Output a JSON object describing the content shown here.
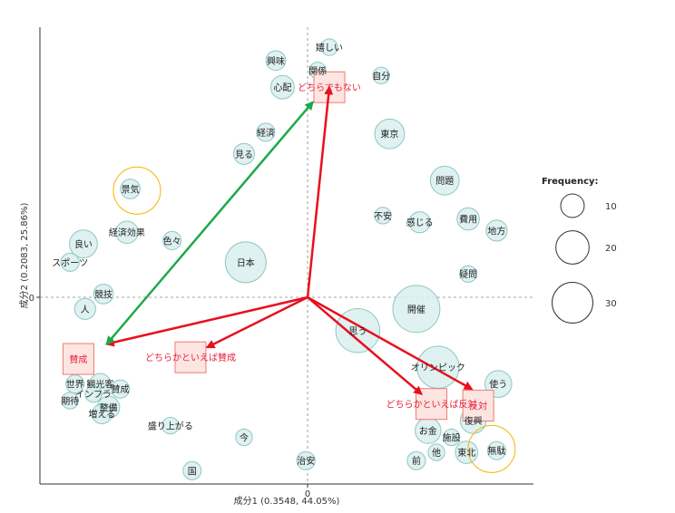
{
  "chart_data": {
    "type": "scatter",
    "xlabel": "成分1 (0.3548, 44.05%)",
    "ylabel": "成分2 (0.2083, 25.86%)",
    "xlim": [
      -1.6,
      1.35
    ],
    "ylim": [
      -1.12,
      1.62
    ],
    "reference_lines": {
      "x": 0,
      "y": 0
    },
    "x_ticks": [
      {
        "value": 0,
        "label": "0"
      }
    ],
    "y_ticks": [
      {
        "value": 0,
        "label": "0"
      }
    ],
    "words": [
      {
        "label": "嬉しい",
        "x": 0.13,
        "y": 1.5,
        "freq": 5
      },
      {
        "label": "興味",
        "x": -0.19,
        "y": 1.42,
        "freq": 7
      },
      {
        "label": "関係",
        "x": 0.06,
        "y": 1.36,
        "freq": 5
      },
      {
        "label": "自分",
        "x": 0.44,
        "y": 1.33,
        "freq": 5
      },
      {
        "label": "心配",
        "x": -0.15,
        "y": 1.26,
        "freq": 10
      },
      {
        "label": "経済",
        "x": -0.25,
        "y": 0.99,
        "freq": 6
      },
      {
        "label": "東京",
        "x": 0.49,
        "y": 0.98,
        "freq": 16
      },
      {
        "label": "見る",
        "x": -0.38,
        "y": 0.86,
        "freq": 8
      },
      {
        "label": "問題",
        "x": 0.82,
        "y": 0.7,
        "freq": 15
      },
      {
        "label": "景気",
        "x": -1.06,
        "y": 0.65,
        "freq": 7
      },
      {
        "label": "費用",
        "x": 0.96,
        "y": 0.47,
        "freq": 9
      },
      {
        "label": "不安",
        "x": 0.45,
        "y": 0.49,
        "freq": 5
      },
      {
        "label": "感じる",
        "x": 0.67,
        "y": 0.45,
        "freq": 8
      },
      {
        "label": "地方",
        "x": 1.13,
        "y": 0.4,
        "freq": 8
      },
      {
        "label": "良い",
        "x": -1.34,
        "y": 0.32,
        "freq": 14
      },
      {
        "label": "経済効果",
        "x": -1.08,
        "y": 0.39,
        "freq": 9
      },
      {
        "label": "色々",
        "x": -0.81,
        "y": 0.34,
        "freq": 6
      },
      {
        "label": "日本",
        "x": -0.37,
        "y": 0.21,
        "freq": 30
      },
      {
        "label": "スポーツ",
        "x": -1.42,
        "y": 0.21,
        "freq": 6
      },
      {
        "label": "疑問",
        "x": 0.96,
        "y": 0.14,
        "freq": 5
      },
      {
        "label": "競技",
        "x": -1.22,
        "y": 0.02,
        "freq": 7
      },
      {
        "label": "人",
        "x": -1.33,
        "y": -0.07,
        "freq": 8
      },
      {
        "label": "開催",
        "x": 0.65,
        "y": -0.07,
        "freq": 40
      },
      {
        "label": "思う",
        "x": 0.3,
        "y": -0.2,
        "freq": 35
      },
      {
        "label": "オリンピック",
        "x": 0.78,
        "y": -0.42,
        "freq": 32
      },
      {
        "label": "使う",
        "x": 1.14,
        "y": -0.52,
        "freq": 13
      },
      {
        "label": "世界",
        "x": -1.39,
        "y": -0.52,
        "freq": 6
      },
      {
        "label": "観光客",
        "x": -1.24,
        "y": -0.52,
        "freq": 8
      },
      {
        "label": "賛成",
        "x": -1.12,
        "y": -0.55,
        "freq": 6
      },
      {
        "label": "インフラ",
        "x": -1.28,
        "y": -0.58,
        "freq": 5
      },
      {
        "label": "期待",
        "x": -1.42,
        "y": -0.62,
        "freq": 5
      },
      {
        "label": "整備",
        "x": -1.19,
        "y": -0.66,
        "freq": 9
      },
      {
        "label": "増える",
        "x": -1.23,
        "y": -0.7,
        "freq": 7
      },
      {
        "label": "盛り上がる",
        "x": -0.82,
        "y": -0.77,
        "freq": 5
      },
      {
        "label": "復興",
        "x": 0.99,
        "y": -0.74,
        "freq": 12
      },
      {
        "label": "お金",
        "x": 0.72,
        "y": -0.8,
        "freq": 12
      },
      {
        "label": "施設",
        "x": 0.86,
        "y": -0.84,
        "freq": 5
      },
      {
        "label": "今",
        "x": -0.38,
        "y": -0.84,
        "freq": 5
      },
      {
        "label": "無駄",
        "x": 1.13,
        "y": -0.92,
        "freq": 6
      },
      {
        "label": "他",
        "x": 0.77,
        "y": -0.93,
        "freq": 5
      },
      {
        "label": "東北",
        "x": 0.95,
        "y": -0.93,
        "freq": 9
      },
      {
        "label": "前",
        "x": 0.65,
        "y": -0.98,
        "freq": 6
      },
      {
        "label": "治安",
        "x": -0.01,
        "y": -0.98,
        "freq": 6
      },
      {
        "label": "国",
        "x": -0.69,
        "y": -1.04,
        "freq": 6
      }
    ],
    "categories": [
      {
        "label": "どちらでもない",
        "x": 0.13,
        "y": 1.26
      },
      {
        "label": "賛成",
        "x": -1.37,
        "y": -0.37
      },
      {
        "label": "どちらかといえば賛成",
        "x": -0.7,
        "y": -0.36
      },
      {
        "label": "どちらかといえば反対",
        "x": 0.74,
        "y": -0.64
      },
      {
        "label": "反対",
        "x": 1.02,
        "y": -0.65
      }
    ],
    "arrows": [
      {
        "from": [
          0,
          0
        ],
        "to": [
          0.13,
          1.26
        ],
        "color": "#e8101e"
      },
      {
        "from": [
          0,
          0
        ],
        "to": [
          -1.2,
          -0.28
        ],
        "color": "#e8101e"
      },
      {
        "from": [
          0,
          0
        ],
        "to": [
          -0.6,
          -0.3
        ],
        "color": "#e8101e"
      },
      {
        "from": [
          0,
          0
        ],
        "to": [
          0.68,
          -0.58
        ],
        "color": "#e8101e"
      },
      {
        "from": [
          0,
          0
        ],
        "to": [
          0.98,
          -0.55
        ],
        "color": "#e8101e"
      },
      {
        "from": [
          0.03,
          1.17
        ],
        "to": [
          -1.2,
          -0.28
        ],
        "color": "#1da94a",
        "double": true
      }
    ],
    "highlights": [
      {
        "label": "景気",
        "x": -1.02,
        "y": 0.64
      },
      {
        "label": "無駄",
        "x": 1.1,
        "y": -0.91
      }
    ],
    "legend": {
      "title": "Frequency:",
      "placement": "right",
      "sizes": [
        10,
        20,
        30
      ]
    },
    "colors": {
      "bubble_fill": "#d9efee",
      "bubble_stroke": "#8fc7c4",
      "category_fill": "#fde5e2",
      "category_stroke": "#f07a70",
      "category_text": "#e8203a",
      "arrow_red": "#e8101e",
      "arrow_green": "#1da94a",
      "highlight": "#f2b600"
    }
  }
}
